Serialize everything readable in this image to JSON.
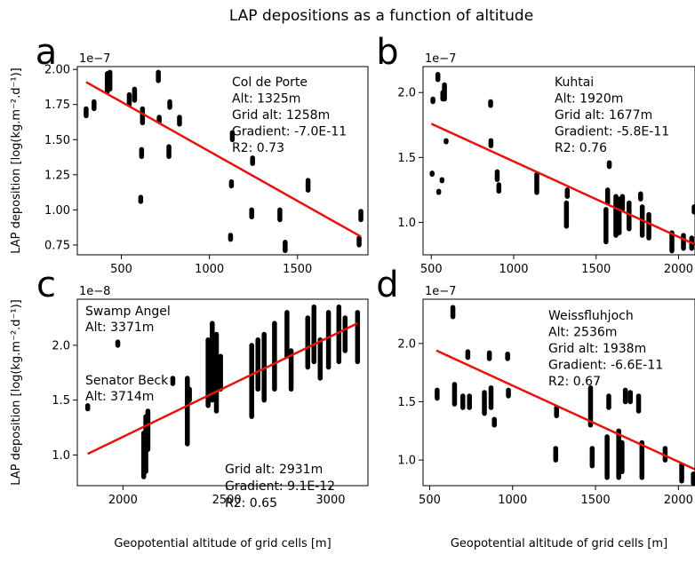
{
  "figure": {
    "title": "LAP depositions as a function of altitude"
  },
  "chart_data": [
    {
      "type": "scatter",
      "panel_letter": "a",
      "offset_label": "1e−7",
      "xlabel": "",
      "ylabel": "LAP deposition [log(kg.m⁻².d⁻¹)]",
      "xlim": [
        250,
        1900
      ],
      "ylim": [
        0.68,
        2.02
      ],
      "xticks": [
        500,
        1000,
        1500
      ],
      "yticks": [
        0.75,
        1.0,
        1.25,
        1.5,
        1.75,
        2.0
      ],
      "ytick_labels": [
        "0.75",
        "1.00",
        "1.25",
        "1.50",
        "1.75",
        "2.00"
      ],
      "annotations": [
        "Col de Porte",
        "Alt: 1325m",
        "Grid alt: 1258m",
        "Gradient: -7.0E-11",
        "R2: 0.73"
      ],
      "clusters": [
        {
          "x": 300,
          "y0": 1.67,
          "y1": 1.72
        },
        {
          "x": 345,
          "y0": 1.72,
          "y1": 1.77
        },
        {
          "x": 420,
          "y0": 1.84,
          "y1": 1.97
        },
        {
          "x": 435,
          "y0": 1.86,
          "y1": 1.98
        },
        {
          "x": 545,
          "y0": 1.75,
          "y1": 1.82
        },
        {
          "x": 575,
          "y0": 1.78,
          "y1": 1.86
        },
        {
          "x": 610,
          "y0": 1.06,
          "y1": 1.09
        },
        {
          "x": 615,
          "y0": 1.38,
          "y1": 1.43
        },
        {
          "x": 620,
          "y0": 1.62,
          "y1": 1.72
        },
        {
          "x": 710,
          "y0": 1.92,
          "y1": 1.98
        },
        {
          "x": 715,
          "y0": 1.63,
          "y1": 1.66
        },
        {
          "x": 770,
          "y0": 1.38,
          "y1": 1.45
        },
        {
          "x": 775,
          "y0": 1.73,
          "y1": 1.77
        },
        {
          "x": 830,
          "y0": 1.61,
          "y1": 1.66
        },
        {
          "x": 1120,
          "y0": 0.79,
          "y1": 0.82
        },
        {
          "x": 1125,
          "y0": 1.17,
          "y1": 1.2
        },
        {
          "x": 1130,
          "y0": 1.5,
          "y1": 1.55
        },
        {
          "x": 1240,
          "y0": 0.95,
          "y1": 1.0
        },
        {
          "x": 1245,
          "y0": 1.33,
          "y1": 1.37
        },
        {
          "x": 1400,
          "y0": 0.93,
          "y1": 1.0
        },
        {
          "x": 1430,
          "y0": 0.71,
          "y1": 0.77
        },
        {
          "x": 1560,
          "y0": 1.14,
          "y1": 1.21
        },
        {
          "x": 1850,
          "y0": 0.75,
          "y1": 0.8
        },
        {
          "x": 1860,
          "y0": 0.93,
          "y1": 0.99
        }
      ],
      "fit": {
        "x": [
          300,
          1860
        ],
        "y": [
          1.91,
          0.81
        ]
      }
    },
    {
      "type": "scatter",
      "panel_letter": "b",
      "offset_label": "1e−7",
      "xlabel": "",
      "ylabel": "",
      "xlim": [
        450,
        2100
      ],
      "ylim": [
        0.75,
        2.2
      ],
      "xticks": [
        500,
        1000,
        1500,
        2000
      ],
      "yticks": [
        1.0,
        1.5,
        2.0
      ],
      "ytick_labels": [
        "1.0",
        "1.5",
        "2.0"
      ],
      "annotations": [
        "Kuhtai",
        "Alt: 1920m",
        "Grid alt: 1677m",
        "Gradient: -5.8E-11",
        "R2: 0.76"
      ],
      "clusters": [
        {
          "x": 505,
          "y0": 1.37,
          "y1": 1.38
        },
        {
          "x": 510,
          "y0": 1.93,
          "y1": 1.95
        },
        {
          "x": 540,
          "y0": 2.1,
          "y1": 2.14
        },
        {
          "x": 545,
          "y0": 1.23,
          "y1": 1.24
        },
        {
          "x": 565,
          "y0": 1.32,
          "y1": 1.33
        },
        {
          "x": 570,
          "y0": 1.95,
          "y1": 2.0
        },
        {
          "x": 580,
          "y0": 1.95,
          "y1": 2.06
        },
        {
          "x": 590,
          "y0": 1.62,
          "y1": 1.63
        },
        {
          "x": 860,
          "y0": 1.9,
          "y1": 1.93
        },
        {
          "x": 862,
          "y0": 1.59,
          "y1": 1.63
        },
        {
          "x": 900,
          "y0": 1.33,
          "y1": 1.39
        },
        {
          "x": 910,
          "y0": 1.24,
          "y1": 1.29
        },
        {
          "x": 1140,
          "y0": 1.23,
          "y1": 1.37
        },
        {
          "x": 1320,
          "y0": 0.97,
          "y1": 1.15
        },
        {
          "x": 1325,
          "y0": 1.2,
          "y1": 1.25
        },
        {
          "x": 1560,
          "y0": 0.85,
          "y1": 1.1
        },
        {
          "x": 1570,
          "y0": 1.15,
          "y1": 1.25
        },
        {
          "x": 1580,
          "y0": 1.43,
          "y1": 1.46
        },
        {
          "x": 1620,
          "y0": 0.9,
          "y1": 1.2
        },
        {
          "x": 1640,
          "y0": 0.92,
          "y1": 1.18
        },
        {
          "x": 1660,
          "y0": 1.1,
          "y1": 1.2
        },
        {
          "x": 1700,
          "y0": 0.95,
          "y1": 1.15
        },
        {
          "x": 1770,
          "y0": 1.18,
          "y1": 1.22
        },
        {
          "x": 1780,
          "y0": 0.9,
          "y1": 1.12
        },
        {
          "x": 1820,
          "y0": 0.88,
          "y1": 1.06
        },
        {
          "x": 1960,
          "y0": 0.78,
          "y1": 0.92
        },
        {
          "x": 2030,
          "y0": 0.8,
          "y1": 0.9
        },
        {
          "x": 2080,
          "y0": 0.8,
          "y1": 0.88
        },
        {
          "x": 2095,
          "y0": 1.08,
          "y1": 1.12
        }
      ],
      "fit": {
        "x": [
          500,
          2100
        ],
        "y": [
          1.76,
          0.83
        ]
      }
    },
    {
      "type": "scatter",
      "panel_letter": "c",
      "offset_label": "1e−8",
      "xlabel": "Geopotential altitude of grid cells [m]",
      "ylabel": "LAP deposition [log(kg.m⁻².d⁻¹)]",
      "xlim": [
        1780,
        3180
      ],
      "ylim": [
        0.72,
        2.42
      ],
      "xticks": [
        2000,
        2500,
        3000
      ],
      "yticks": [
        1.0,
        1.5,
        2.0
      ],
      "ytick_labels": [
        "1.0",
        "1.5",
        "2.0"
      ],
      "annotations": [
        "Swamp Angel",
        "Alt: 3371m",
        "Senator Beck",
        "Alt: 3714m",
        "Grid alt: 2931m",
        "Gradient: 9.1E-12",
        "R2: 0.65"
      ],
      "clusters": [
        {
          "x": 1830,
          "y0": 1.42,
          "y1": 1.45
        },
        {
          "x": 1975,
          "y0": 2.0,
          "y1": 2.03
        },
        {
          "x": 2100,
          "y0": 0.8,
          "y1": 1.2
        },
        {
          "x": 2110,
          "y0": 0.85,
          "y1": 1.35
        },
        {
          "x": 2120,
          "y0": 1.05,
          "y1": 1.4
        },
        {
          "x": 2240,
          "y0": 1.65,
          "y1": 1.7
        },
        {
          "x": 2310,
          "y0": 1.1,
          "y1": 1.7
        },
        {
          "x": 2320,
          "y0": 1.5,
          "y1": 1.6
        },
        {
          "x": 2410,
          "y0": 1.45,
          "y1": 2.05
        },
        {
          "x": 2430,
          "y0": 1.5,
          "y1": 2.2
        },
        {
          "x": 2450,
          "y0": 1.4,
          "y1": 2.1
        },
        {
          "x": 2470,
          "y0": 1.6,
          "y1": 1.9
        },
        {
          "x": 2620,
          "y0": 1.35,
          "y1": 2.0
        },
        {
          "x": 2650,
          "y0": 1.6,
          "y1": 2.05
        },
        {
          "x": 2680,
          "y0": 1.5,
          "y1": 2.1
        },
        {
          "x": 2730,
          "y0": 1.6,
          "y1": 2.2
        },
        {
          "x": 2790,
          "y0": 1.9,
          "y1": 2.3
        },
        {
          "x": 2810,
          "y0": 1.6,
          "y1": 1.95
        },
        {
          "x": 2890,
          "y0": 1.8,
          "y1": 2.25
        },
        {
          "x": 2920,
          "y0": 1.85,
          "y1": 2.35
        },
        {
          "x": 2950,
          "y0": 1.7,
          "y1": 2.05
        },
        {
          "x": 2990,
          "y0": 1.8,
          "y1": 2.3
        },
        {
          "x": 3040,
          "y0": 1.85,
          "y1": 2.35
        },
        {
          "x": 3070,
          "y0": 1.95,
          "y1": 2.25
        },
        {
          "x": 3130,
          "y0": 1.85,
          "y1": 2.3
        }
      ],
      "fit": {
        "x": [
          1830,
          3130
        ],
        "y": [
          1.01,
          2.2
        ]
      }
    },
    {
      "type": "scatter",
      "panel_letter": "d",
      "offset_label": "1e−7",
      "xlabel": "Geopotential altitude of grid cells [m]",
      "ylabel": "",
      "xlim": [
        460,
        2100
      ],
      "ylim": [
        0.78,
        2.38
      ],
      "xticks": [
        500,
        1000,
        1500,
        2000
      ],
      "yticks": [
        1.0,
        1.5,
        2.0
      ],
      "ytick_labels": [
        "1.0",
        "1.5",
        "2.0"
      ],
      "annotations": [
        "Weissfluhjoch",
        "Alt: 2536m",
        "Grid alt: 1938m",
        "Gradient: -6.6E-11",
        "R2: 0.67"
      ],
      "clusters": [
        {
          "x": 545,
          "y0": 1.53,
          "y1": 1.6
        },
        {
          "x": 640,
          "y0": 2.23,
          "y1": 2.31
        },
        {
          "x": 650,
          "y0": 1.48,
          "y1": 1.65
        },
        {
          "x": 700,
          "y0": 1.45,
          "y1": 1.55
        },
        {
          "x": 730,
          "y0": 1.88,
          "y1": 1.93
        },
        {
          "x": 740,
          "y0": 1.45,
          "y1": 1.55
        },
        {
          "x": 830,
          "y0": 1.4,
          "y1": 1.58
        },
        {
          "x": 860,
          "y0": 1.87,
          "y1": 1.92
        },
        {
          "x": 870,
          "y0": 1.45,
          "y1": 1.62
        },
        {
          "x": 890,
          "y0": 1.3,
          "y1": 1.35
        },
        {
          "x": 970,
          "y0": 1.87,
          "y1": 1.91
        },
        {
          "x": 975,
          "y0": 1.55,
          "y1": 1.6
        },
        {
          "x": 1260,
          "y0": 1.0,
          "y1": 1.1
        },
        {
          "x": 1265,
          "y0": 1.38,
          "y1": 1.45
        },
        {
          "x": 1470,
          "y0": 1.3,
          "y1": 1.62
        },
        {
          "x": 1480,
          "y0": 0.95,
          "y1": 1.1
        },
        {
          "x": 1570,
          "y0": 0.85,
          "y1": 1.2
        },
        {
          "x": 1580,
          "y0": 1.45,
          "y1": 1.55
        },
        {
          "x": 1640,
          "y0": 0.85,
          "y1": 1.25
        },
        {
          "x": 1660,
          "y0": 0.9,
          "y1": 1.15
        },
        {
          "x": 1680,
          "y0": 1.5,
          "y1": 1.6
        },
        {
          "x": 1710,
          "y0": 1.5,
          "y1": 1.58
        },
        {
          "x": 1760,
          "y0": 1.42,
          "y1": 1.55
        },
        {
          "x": 1780,
          "y0": 0.85,
          "y1": 1.15
        },
        {
          "x": 1920,
          "y0": 1.0,
          "y1": 1.1
        },
        {
          "x": 2020,
          "y0": 0.82,
          "y1": 0.96
        },
        {
          "x": 2090,
          "y0": 0.8,
          "y1": 0.88
        }
      ],
      "fit": {
        "x": [
          540,
          2100
        ],
        "y": [
          1.94,
          0.92
        ]
      }
    }
  ]
}
